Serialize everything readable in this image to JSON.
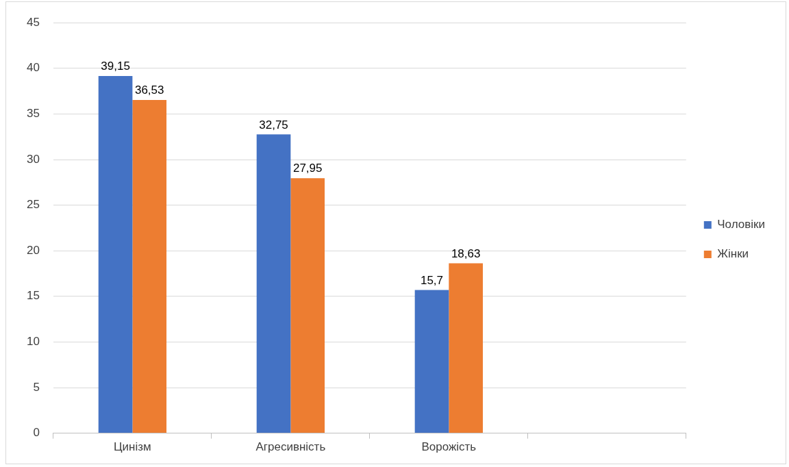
{
  "chart_data": {
    "type": "bar",
    "categories": [
      "Цинізм",
      "Агресивність",
      "Ворожість",
      null
    ],
    "series": [
      {
        "name": "Чоловіки",
        "color": "#4472c4",
        "values": [
          39.15,
          32.75,
          15.7,
          null
        ],
        "value_labels": [
          "39,15",
          "32,75",
          "15,7",
          null
        ]
      },
      {
        "name": "Жінки",
        "color": "#ed7d31",
        "values": [
          36.53,
          27.95,
          18.63,
          null
        ],
        "value_labels": [
          "36,53",
          "27,95",
          "18,63",
          null
        ]
      }
    ],
    "ylim": [
      0,
      45
    ],
    "yticks": [
      0,
      5,
      10,
      15,
      20,
      25,
      30,
      35,
      40,
      45
    ],
    "grid": "y",
    "legend": "right"
  }
}
